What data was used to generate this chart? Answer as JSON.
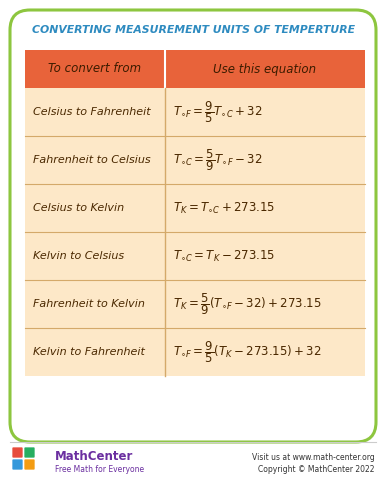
{
  "title": "CONVERTING MEASUREMENT UNITS OF TEMPERTURE",
  "title_color": "#2e8bc0",
  "bg_color": "#ffffff",
  "outer_border_color": "#8dc63f",
  "header_bg": "#e8633a",
  "row_bg": "#fde8c8",
  "col1_header": "To convert from",
  "col2_header": "Use this equation",
  "rows": [
    "Celsius to Fahrenheit",
    "Fahrenheit to Celsius",
    "Celsius to Kelvin",
    "Kelvin to Celsius",
    "Fahrenheit to Kelvin",
    "Kelvin to Fahrenheit"
  ],
  "footer_left1": "MathCenter",
  "footer_left2": "Free Math for Everyone",
  "footer_right1": "Visit us at ",
  "footer_right1_url": "www.math-center.org",
  "footer_right2": "Copyright © MathCenter 2022",
  "eq1": "T_{\\circ F}=\\frac{9}{5}T_{\\circ C}+32",
  "eq2": "T_{\\circ C}=\\frac{5}{9}T_{\\circ F}-32",
  "eq3": "T_{K}=T_{\\circ C}+273.15",
  "eq4": "T_{\\circ C}=T_{K}-273.15",
  "eq5": "T_{K}=\\frac{5}{9}(T_{\\circ F}-32)+273.15",
  "eq6": "T_{\\circ F}=\\frac{9}{5}(T_{K}-273.15)+32"
}
